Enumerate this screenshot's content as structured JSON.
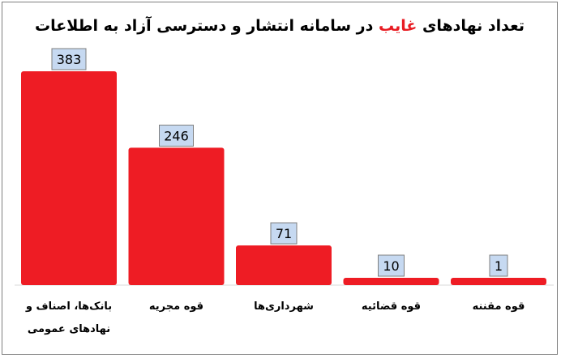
{
  "chart_data": {
    "type": "bar",
    "title_parts": [
      "تعداد نهادهای ",
      "غایب",
      " در سامانه انتشار و دسترسی آزاد به اطلاعات"
    ],
    "categories": [
      [
        "بانک‌ها، اصناف و",
        "نهادهای عمومی"
      ],
      [
        "قوه مجریه"
      ],
      [
        "شهرداری‌ها"
      ],
      [
        "قوه قضائیه"
      ],
      [
        "قوه مقننه"
      ]
    ],
    "values": [
      383,
      246,
      71,
      10,
      1
    ],
    "value_labels": [
      "383",
      "246",
      "71",
      "10",
      "1"
    ],
    "ylim": [
      0,
      383
    ],
    "grid": false,
    "legend": "none",
    "bar_color": "#ee1c24",
    "highlight_color": "#e81c23",
    "label_box_color": "#c6d9f1"
  }
}
